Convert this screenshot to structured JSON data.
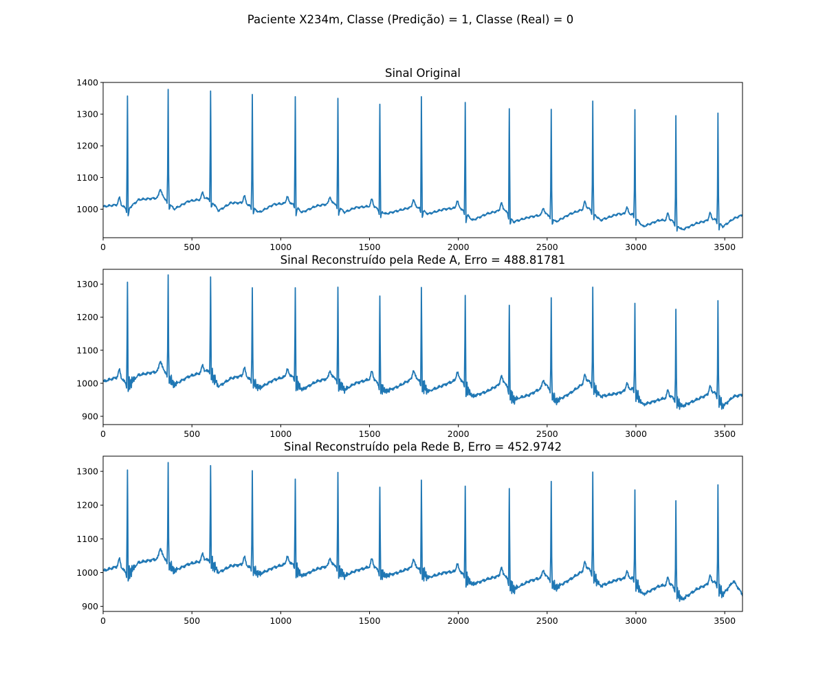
{
  "figure": {
    "suptitle": "Paciente X234m, Classe (Predição) = 1, Classe (Real) = 0",
    "line_color": "#1f77b4"
  },
  "chart_data": [
    {
      "type": "line",
      "title": "Sinal Original",
      "xlabel": "",
      "ylabel": "",
      "xlim": [
        0,
        3600
      ],
      "ylim": [
        910,
        1400
      ],
      "xticks": [
        0,
        500,
        1000,
        1500,
        2000,
        2500,
        3000,
        3500
      ],
      "yticks": [
        1000,
        1100,
        1200,
        1300,
        1400
      ],
      "grid": false,
      "series": [
        {
          "style": "clean",
          "baseline": [
            [
              0,
              1008
            ],
            [
              90,
              1015
            ],
            [
              140,
              1000
            ],
            [
              200,
              1030
            ],
            [
              300,
              1035
            ],
            [
              330,
              1045
            ],
            [
              400,
              1000
            ],
            [
              480,
              1025
            ],
            [
              600,
              1035
            ],
            [
              650,
              995
            ],
            [
              720,
              1020
            ],
            [
              800,
              1020
            ],
            [
              880,
              990
            ],
            [
              960,
              1015
            ],
            [
              1060,
              1020
            ],
            [
              1120,
              990
            ],
            [
              1200,
              1010
            ],
            [
              1300,
              1020
            ],
            [
              1360,
              990
            ],
            [
              1420,
              1005
            ],
            [
              1520,
              1010
            ],
            [
              1590,
              985
            ],
            [
              1660,
              995
            ],
            [
              1760,
              1010
            ],
            [
              1830,
              985
            ],
            [
              1920,
              1000
            ],
            [
              2010,
              1005
            ],
            [
              2080,
              965
            ],
            [
              2160,
              985
            ],
            [
              2260,
              1000
            ],
            [
              2310,
              960
            ],
            [
              2400,
              975
            ],
            [
              2500,
              985
            ],
            [
              2550,
              960
            ],
            [
              2630,
              985
            ],
            [
              2730,
              1005
            ],
            [
              2800,
              965
            ],
            [
              2900,
              985
            ],
            [
              2980,
              985
            ],
            [
              3040,
              945
            ],
            [
              3130,
              965
            ],
            [
              3200,
              965
            ],
            [
              3260,
              935
            ],
            [
              3340,
              955
            ],
            [
              3440,
              970
            ],
            [
              3490,
              945
            ],
            [
              3550,
              970
            ],
            [
              3600,
              982
            ]
          ],
          "beats": [
            [
              137,
              1357
            ],
            [
              366,
              1378
            ],
            [
              605,
              1373
            ],
            [
              840,
              1362
            ],
            [
              1082,
              1355
            ],
            [
              1322,
              1350
            ],
            [
              1558,
              1331
            ],
            [
              1792,
              1355
            ],
            [
              2039,
              1337
            ],
            [
              2287,
              1317
            ],
            [
              2523,
              1315
            ],
            [
              2757,
              1341
            ],
            [
              2994,
              1314
            ],
            [
              3225,
              1295
            ],
            [
              3462,
              1303
            ]
          ]
        }
      ]
    },
    {
      "type": "line",
      "title": "Sinal Reconstruído pela Rede A, Erro = 488.81781",
      "xlabel": "",
      "ylabel": "",
      "xlim": [
        0,
        3600
      ],
      "ylim": [
        875,
        1345
      ],
      "xticks": [
        0,
        500,
        1000,
        1500,
        2000,
        2500,
        3000,
        3500
      ],
      "yticks": [
        900,
        1000,
        1100,
        1200,
        1300
      ],
      "grid": false,
      "series": [
        {
          "style": "noisy",
          "baseline": [
            [
              0,
              1005
            ],
            [
              90,
              1020
            ],
            [
              140,
              995
            ],
            [
              200,
              1025
            ],
            [
              300,
              1035
            ],
            [
              330,
              1050
            ],
            [
              400,
              995
            ],
            [
              480,
              1020
            ],
            [
              600,
              1040
            ],
            [
              650,
              990
            ],
            [
              720,
              1015
            ],
            [
              800,
              1025
            ],
            [
              880,
              985
            ],
            [
              960,
              1010
            ],
            [
              1060,
              1025
            ],
            [
              1120,
              980
            ],
            [
              1200,
              1005
            ],
            [
              1300,
              1020
            ],
            [
              1360,
              980
            ],
            [
              1420,
              1000
            ],
            [
              1520,
              1015
            ],
            [
              1590,
              975
            ],
            [
              1660,
              990
            ],
            [
              1760,
              1020
            ],
            [
              1830,
              975
            ],
            [
              1920,
              995
            ],
            [
              2010,
              1015
            ],
            [
              2080,
              960
            ],
            [
              2160,
              975
            ],
            [
              2260,
              1005
            ],
            [
              2310,
              950
            ],
            [
              2400,
              965
            ],
            [
              2500,
              995
            ],
            [
              2550,
              945
            ],
            [
              2630,
              970
            ],
            [
              2730,
              1010
            ],
            [
              2800,
              960
            ],
            [
              2900,
              970
            ],
            [
              2980,
              985
            ],
            [
              3040,
              935
            ],
            [
              3130,
              950
            ],
            [
              3200,
              960
            ],
            [
              3260,
              930
            ],
            [
              3340,
              950
            ],
            [
              3440,
              975
            ],
            [
              3490,
              930
            ],
            [
              3550,
              960
            ],
            [
              3600,
              965
            ]
          ],
          "beats": [
            [
              137,
              1306
            ],
            [
              366,
              1328
            ],
            [
              605,
              1322
            ],
            [
              840,
              1289
            ],
            [
              1082,
              1289
            ],
            [
              1322,
              1291
            ],
            [
              1558,
              1264
            ],
            [
              1792,
              1290
            ],
            [
              2039,
              1266
            ],
            [
              2287,
              1236
            ],
            [
              2523,
              1259
            ],
            [
              2757,
              1291
            ],
            [
              2994,
              1242
            ],
            [
              3225,
              1224
            ],
            [
              3462,
              1250
            ]
          ]
        }
      ]
    },
    {
      "type": "line",
      "title": "Sinal Reconstruído pela Rede B, Erro = 452.9742",
      "xlabel": "",
      "ylabel": "",
      "xlim": [
        0,
        3600
      ],
      "ylim": [
        885,
        1345
      ],
      "xticks": [
        0,
        500,
        1000,
        1500,
        2000,
        2500,
        3000,
        3500
      ],
      "yticks": [
        900,
        1000,
        1100,
        1200,
        1300
      ],
      "grid": false,
      "series": [
        {
          "style": "noisy",
          "baseline": [
            [
              0,
              1005
            ],
            [
              90,
              1020
            ],
            [
              140,
              995
            ],
            [
              200,
              1030
            ],
            [
              300,
              1040
            ],
            [
              330,
              1055
            ],
            [
              400,
              1005
            ],
            [
              480,
              1025
            ],
            [
              600,
              1040
            ],
            [
              650,
              1000
            ],
            [
              720,
              1020
            ],
            [
              800,
              1025
            ],
            [
              880,
              995
            ],
            [
              960,
              1015
            ],
            [
              1060,
              1030
            ],
            [
              1120,
              990
            ],
            [
              1200,
              1010
            ],
            [
              1300,
              1025
            ],
            [
              1360,
              990
            ],
            [
              1420,
              1005
            ],
            [
              1520,
              1020
            ],
            [
              1590,
              990
            ],
            [
              1660,
              1000
            ],
            [
              1760,
              1020
            ],
            [
              1830,
              985
            ],
            [
              1920,
              1000
            ],
            [
              2010,
              1005
            ],
            [
              2080,
              965
            ],
            [
              2160,
              980
            ],
            [
              2260,
              995
            ],
            [
              2310,
              950
            ],
            [
              2400,
              975
            ],
            [
              2500,
              990
            ],
            [
              2550,
              955
            ],
            [
              2630,
              980
            ],
            [
              2730,
              1015
            ],
            [
              2800,
              960
            ],
            [
              2900,
              980
            ],
            [
              2980,
              985
            ],
            [
              3040,
              935
            ],
            [
              3130,
              960
            ],
            [
              3200,
              965
            ],
            [
              3260,
              920
            ],
            [
              3340,
              950
            ],
            [
              3440,
              975
            ],
            [
              3490,
              935
            ],
            [
              3550,
              975
            ],
            [
              3600,
              935
            ]
          ],
          "beats": [
            [
              137,
              1304
            ],
            [
              366,
              1326
            ],
            [
              605,
              1317
            ],
            [
              840,
              1302
            ],
            [
              1082,
              1277
            ],
            [
              1322,
              1297
            ],
            [
              1558,
              1253
            ],
            [
              1792,
              1274
            ],
            [
              2039,
              1256
            ],
            [
              2287,
              1249
            ],
            [
              2523,
              1270
            ],
            [
              2757,
              1298
            ],
            [
              2994,
              1245
            ],
            [
              3225,
              1213
            ],
            [
              3462,
              1260
            ]
          ]
        }
      ]
    }
  ]
}
